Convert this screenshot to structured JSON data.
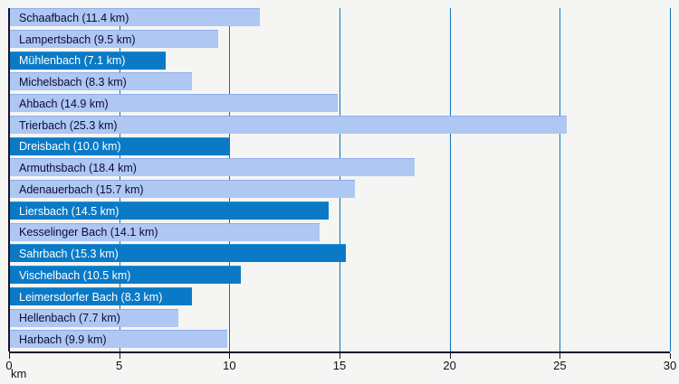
{
  "chart_data": {
    "type": "bar",
    "orientation": "horizontal",
    "title": "",
    "xlabel": "km",
    "ylabel": "",
    "xlim": [
      0,
      30
    ],
    "xticks": [
      0,
      5,
      10,
      15,
      20,
      25,
      30
    ],
    "xtick_labels": [
      "0",
      "5",
      "10",
      "15",
      "20",
      "25",
      "30"
    ],
    "grid": "vertical",
    "legend": "none",
    "bars": [
      {
        "name": "Schaafbach",
        "value_km": 11.4,
        "label": "Schaafbach (11.4 km)",
        "style": "light"
      },
      {
        "name": "Lampertsbach",
        "value_km": 9.5,
        "label": "Lampertsbach (9.5 km)",
        "style": "light"
      },
      {
        "name": "Mühlenbach",
        "value_km": 7.1,
        "label": "Mühlenbach (7.1 km)",
        "style": "dark"
      },
      {
        "name": "Michelsbach",
        "value_km": 8.3,
        "label": "Michelsbach (8.3 km)",
        "style": "light"
      },
      {
        "name": "Ahbach",
        "value_km": 14.9,
        "label": "Ahbach (14.9 km)",
        "style": "light"
      },
      {
        "name": "Trierbach",
        "value_km": 25.3,
        "label": "Trierbach (25.3 km)",
        "style": "light"
      },
      {
        "name": "Dreisbach",
        "value_km": 10.0,
        "label": "Dreisbach (10.0 km)",
        "style": "dark"
      },
      {
        "name": "Armuthsbach",
        "value_km": 18.4,
        "label": "Armuthsbach (18.4 km)",
        "style": "light"
      },
      {
        "name": "Adenauerbach",
        "value_km": 15.7,
        "label": "Adenauerbach (15.7 km)",
        "style": "light"
      },
      {
        "name": "Liersbach",
        "value_km": 14.5,
        "label": "Liersbach (14.5 km)",
        "style": "dark"
      },
      {
        "name": "Kesselinger Bach",
        "value_km": 14.1,
        "label": "Kesselinger Bach (14.1 km)",
        "style": "light"
      },
      {
        "name": "Sahrbach",
        "value_km": 15.3,
        "label": "Sahrbach (15.3 km)",
        "style": "dark"
      },
      {
        "name": "Vischelbach",
        "value_km": 10.5,
        "label": "Vischelbach (10.5 km)",
        "style": "dark"
      },
      {
        "name": "Leimersdorfer Bach",
        "value_km": 8.3,
        "label": "Leimersdorfer Bach (8.3 km)",
        "style": "dark"
      },
      {
        "name": "Hellenbach",
        "value_km": 7.7,
        "label": "Hellenbach (7.7 km)",
        "style": "light"
      },
      {
        "name": "Harbach",
        "value_km": 9.9,
        "label": "Harbach (9.9 km)",
        "style": "light"
      }
    ],
    "colors": {
      "background": "#f5f5f3",
      "light_bar": "#aec7f3",
      "light_bar_border": "#8fade8",
      "dark_bar": "#0a7ac6",
      "dark_bar_border": "#2a92d6",
      "gridline": "#0a74bc",
      "axis": "#141430",
      "text_on_light": "#0c0c34",
      "text_on_dark": "#ffffff",
      "tick_text": "#111111"
    }
  }
}
